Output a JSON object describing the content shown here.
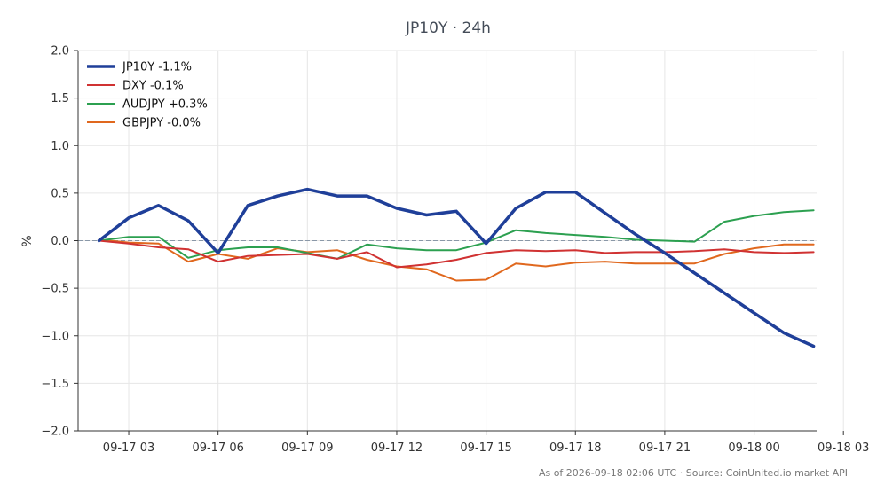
{
  "chart_data": {
    "type": "line",
    "title": "JP10Y · 24h",
    "ylabel": "%",
    "xlabel": "",
    "ylim": [
      -2.0,
      2.0
    ],
    "yticks": [
      2.0,
      1.5,
      1.0,
      0.5,
      0.0,
      -0.5,
      -1.0,
      -1.5,
      -2.0
    ],
    "ytick_labels": [
      "2.0",
      "1.5",
      "1.0",
      "0.5",
      "0.0",
      "−0.5",
      "−1.0",
      "−1.5",
      "−2.0"
    ],
    "xlim": [
      1.3,
      26.1
    ],
    "xticks": [
      3,
      6,
      9,
      12,
      15,
      18,
      21,
      24,
      27
    ],
    "xtick_labels": [
      "09-17 03",
      "09-17 06",
      "09-17 09",
      "09-17 12",
      "09-17 15",
      "09-17 18",
      "09-17 21",
      "09-18 00",
      "09-18 03"
    ],
    "x_hours": [
      2,
      3,
      4,
      5,
      6,
      7,
      8,
      9,
      10,
      11,
      12,
      13,
      14,
      15,
      16,
      17,
      18,
      19,
      20,
      21,
      22,
      23,
      24,
      25,
      26
    ],
    "grid": true,
    "zero_line": true,
    "legend": "top-left",
    "series": [
      {
        "name": "JP10Y -1.1%",
        "color": "#1f3f99",
        "width": 3.5,
        "values": [
          0.0,
          0.24,
          0.37,
          0.21,
          -0.13,
          0.37,
          0.47,
          0.54,
          0.47,
          0.47,
          0.34,
          0.27,
          0.31,
          -0.03,
          0.34,
          0.51,
          0.51,
          0.29,
          0.07,
          -0.13,
          -0.34,
          -0.55,
          -0.76,
          -0.97,
          -1.11
        ]
      },
      {
        "name": "DXY -0.1%",
        "color": "#d03232",
        "width": 2,
        "values": [
          0.0,
          -0.03,
          -0.07,
          -0.09,
          -0.22,
          -0.16,
          -0.15,
          -0.14,
          -0.19,
          -0.12,
          -0.28,
          -0.25,
          -0.2,
          -0.13,
          -0.1,
          -0.11,
          -0.1,
          -0.13,
          -0.12,
          -0.12,
          -0.11,
          -0.09,
          -0.12,
          -0.13,
          -0.12
        ]
      },
      {
        "name": "AUDJPY +0.3%",
        "color": "#2ca050",
        "width": 2,
        "values": [
          0.0,
          0.04,
          0.04,
          -0.18,
          -0.1,
          -0.07,
          -0.07,
          -0.13,
          -0.19,
          -0.04,
          -0.08,
          -0.1,
          -0.1,
          -0.02,
          0.11,
          0.08,
          0.06,
          0.04,
          0.01,
          0.0,
          -0.01,
          0.2,
          0.26,
          0.3,
          0.32
        ]
      },
      {
        "name": "GBPJPY -0.0%",
        "color": "#e0681e",
        "width": 2,
        "values": [
          0.01,
          -0.02,
          -0.03,
          -0.22,
          -0.14,
          -0.19,
          -0.08,
          -0.12,
          -0.1,
          -0.2,
          -0.27,
          -0.3,
          -0.42,
          -0.41,
          -0.24,
          -0.27,
          -0.23,
          -0.22,
          -0.24,
          -0.24,
          -0.24,
          -0.14,
          -0.08,
          -0.04,
          -0.04
        ]
      }
    ]
  },
  "footer": "As of 2026-09-18 02:06 UTC · Source: CoinUnited.io market API"
}
